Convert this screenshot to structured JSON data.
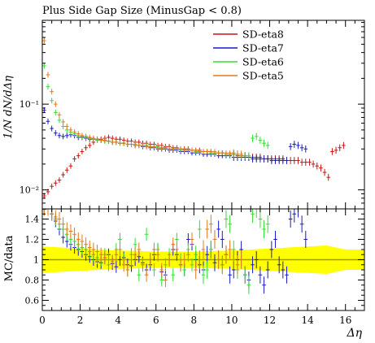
{
  "chart_data": [
    {
      "type": "scatter",
      "title": "Plus Side Gap Size (MinusGap < 0.8)",
      "ylabel": "1/N dN/dΔη",
      "xlim": [
        0,
        17
      ],
      "ylim": [
        0.006,
        0.95
      ],
      "yscale": "log",
      "ytick_labels": [
        "10⁻²",
        "10⁻¹"
      ],
      "ytick_values": [
        0.01,
        0.1
      ],
      "grid": false,
      "legend_position": "top-right",
      "series": [
        {
          "name": "SD-eta8",
          "color": "#cc1111",
          "x": [
            0.1,
            0.3,
            0.5,
            0.7,
            0.9,
            1.1,
            1.3,
            1.5,
            1.7,
            1.9,
            2.1,
            2.3,
            2.5,
            2.7,
            2.9,
            3.1,
            3.3,
            3.5,
            3.7,
            3.9,
            4.1,
            4.3,
            4.5,
            4.7,
            4.9,
            5.1,
            5.3,
            5.5,
            5.7,
            5.9,
            6.1,
            6.3,
            6.5,
            6.7,
            6.9,
            7.1,
            7.3,
            7.5,
            7.7,
            7.9,
            8.1,
            8.3,
            8.5,
            8.7,
            8.9,
            9.1,
            9.3,
            9.5,
            9.7,
            9.9,
            10.1,
            10.3,
            10.5,
            10.7,
            10.9,
            11.1,
            11.3,
            11.5,
            11.7,
            11.9,
            12.1,
            12.3,
            12.5,
            12.7,
            12.9,
            13.1,
            13.3,
            13.5,
            13.7,
            13.9,
            14.1,
            14.3,
            14.5,
            14.7,
            14.9,
            15.1,
            15.3,
            15.5,
            15.7,
            15.9
          ],
          "y": [
            0.0085,
            0.0095,
            0.011,
            0.012,
            0.013,
            0.015,
            0.017,
            0.019,
            0.023,
            0.025,
            0.028,
            0.031,
            0.033,
            0.036,
            0.038,
            0.039,
            0.04,
            0.041,
            0.04,
            0.039,
            0.039,
            0.038,
            0.037,
            0.037,
            0.036,
            0.036,
            0.035,
            0.035,
            0.034,
            0.034,
            0.033,
            0.033,
            0.032,
            0.032,
            0.031,
            0.031,
            0.03,
            0.03,
            0.03,
            0.029,
            0.029,
            0.029,
            0.028,
            0.028,
            0.028,
            0.027,
            0.027,
            0.027,
            0.026,
            0.026,
            0.026,
            0.025,
            0.025,
            0.025,
            0.024,
            0.024,
            0.024,
            0.024,
            0.023,
            0.023,
            0.023,
            0.023,
            0.023,
            0.023,
            0.022,
            0.022,
            0.022,
            0.022,
            0.021,
            0.021,
            0.021,
            0.02,
            0.019,
            0.018,
            0.016,
            0.014,
            0.028,
            0.029,
            0.031,
            0.033
          ],
          "ratio": null
        },
        {
          "name": "SD-eta7",
          "color": "#1a1acc",
          "x": [
            0.1,
            0.3,
            0.5,
            0.7,
            0.9,
            1.1,
            1.3,
            1.5,
            1.7,
            1.9,
            2.1,
            2.3,
            2.5,
            2.7,
            2.9,
            3.1,
            3.3,
            3.5,
            3.7,
            3.9,
            4.1,
            4.3,
            4.5,
            4.7,
            4.9,
            5.1,
            5.3,
            5.5,
            5.7,
            5.9,
            6.1,
            6.3,
            6.5,
            6.7,
            6.9,
            7.1,
            7.3,
            7.5,
            7.7,
            7.9,
            8.1,
            8.3,
            8.5,
            8.7,
            8.9,
            9.1,
            9.3,
            9.5,
            9.7,
            9.9,
            10.1,
            10.3,
            10.5,
            10.7,
            10.9,
            11.1,
            11.3,
            11.5,
            11.7,
            11.9,
            12.1,
            12.3,
            12.5,
            12.7,
            12.9,
            13.1,
            13.3,
            13.5,
            13.7,
            13.9
          ],
          "y": [
            0.085,
            0.063,
            0.052,
            0.046,
            0.043,
            0.042,
            0.043,
            0.044,
            0.043,
            0.041,
            0.041,
            0.04,
            0.039,
            0.039,
            0.039,
            0.038,
            0.038,
            0.037,
            0.036,
            0.036,
            0.035,
            0.035,
            0.034,
            0.034,
            0.033,
            0.033,
            0.032,
            0.032,
            0.031,
            0.031,
            0.03,
            0.03,
            0.03,
            0.029,
            0.029,
            0.029,
            0.028,
            0.028,
            0.028,
            0.027,
            0.027,
            0.027,
            0.026,
            0.026,
            0.026,
            0.026,
            0.025,
            0.025,
            0.025,
            0.025,
            0.024,
            0.024,
            0.024,
            0.024,
            0.024,
            0.023,
            0.023,
            0.023,
            0.023,
            0.023,
            0.022,
            0.022,
            0.022,
            0.022,
            0.022,
            0.032,
            0.034,
            0.033,
            0.031,
            0.03
          ],
          "ratio": [
            1.55,
            1.5,
            1.45,
            1.38,
            1.3,
            1.22,
            1.18,
            1.15,
            1.12,
            1.1,
            1.08,
            1.05,
            1.03,
            1.0,
            0.98,
            0.97,
            1.02,
            1.05,
            0.96,
            0.93,
            1.0,
            1.02,
            0.95,
            0.94,
            1.0,
            1.03,
            0.97,
            0.9,
            0.95,
            1.05,
            1.1,
            0.88,
            0.85,
            1.0,
            1.1,
            1.05,
            0.95,
            0.9,
            1.2,
            1.15,
            1.0,
            0.95,
            0.9,
            1.05,
            1.1,
            0.97,
            1.3,
            1.2,
            1.05,
            0.85,
            0.9,
            1.0,
            1.1,
            0.85,
            0.8,
            0.95,
            1.0,
            0.85,
            0.75,
            0.9,
            1.1,
            1.2,
            0.95,
            0.9,
            0.85,
            1.4,
            1.45,
            1.5,
            1.35,
            1.2
          ]
        },
        {
          "name": "SD-eta6",
          "color": "#33dd33",
          "x": [
            0.1,
            0.3,
            0.5,
            0.7,
            0.9,
            1.1,
            1.3,
            1.5,
            1.7,
            1.9,
            2.1,
            2.3,
            2.5,
            2.7,
            2.9,
            3.1,
            3.3,
            3.5,
            3.7,
            3.9,
            4.1,
            4.3,
            4.5,
            4.7,
            4.9,
            5.1,
            5.3,
            5.5,
            5.7,
            5.9,
            6.1,
            6.3,
            6.5,
            6.7,
            6.9,
            7.1,
            7.3,
            7.5,
            7.7,
            7.9,
            8.1,
            8.3,
            8.5,
            8.7,
            8.9,
            9.1,
            9.3,
            9.5,
            9.7,
            9.9,
            10.1,
            10.3,
            10.5,
            10.7,
            10.9,
            11.1,
            11.3,
            11.5,
            11.7,
            11.9
          ],
          "y": [
            0.28,
            0.16,
            0.11,
            0.08,
            0.065,
            0.055,
            0.05,
            0.047,
            0.045,
            0.043,
            0.042,
            0.041,
            0.04,
            0.039,
            0.038,
            0.038,
            0.037,
            0.037,
            0.036,
            0.036,
            0.035,
            0.035,
            0.034,
            0.034,
            0.034,
            0.033,
            0.033,
            0.033,
            0.032,
            0.032,
            0.032,
            0.031,
            0.031,
            0.03,
            0.03,
            0.03,
            0.029,
            0.029,
            0.029,
            0.029,
            0.028,
            0.028,
            0.028,
            0.028,
            0.027,
            0.027,
            0.027,
            0.027,
            0.026,
            0.026,
            0.026,
            0.026,
            0.025,
            0.025,
            0.025,
            0.04,
            0.042,
            0.038,
            0.035,
            0.033
          ],
          "ratio": [
            1.5,
            1.5,
            1.45,
            1.4,
            1.35,
            1.3,
            1.25,
            1.2,
            1.18,
            1.15,
            1.12,
            1.1,
            1.08,
            1.05,
            1.02,
            1.0,
            1.05,
            0.95,
            0.98,
            1.1,
            1.2,
            1.0,
            0.9,
            1.05,
            1.15,
            0.85,
            0.95,
            1.25,
            1.0,
            0.9,
            1.1,
            0.8,
            0.95,
            1.05,
            0.85,
            1.2,
            1.0,
            0.9,
            1.1,
            0.95,
            1.05,
            1.3,
            0.85,
            0.9,
            1.1,
            1.2,
            1.0,
            0.95,
            1.4,
            1.35,
            1.1,
            0.9,
            1.0,
            0.85,
            0.75,
            1.45,
            1.5,
            1.4,
            1.3,
            1.35
          ]
        },
        {
          "name": "SD-eta5",
          "color": "#e07a1f",
          "x": [
            0.1,
            0.3,
            0.5,
            0.7,
            0.9,
            1.1,
            1.3,
            1.5,
            1.7,
            1.9,
            2.1,
            2.3,
            2.5,
            2.7,
            2.9,
            3.1,
            3.3,
            3.5,
            3.7,
            3.9,
            4.1,
            4.3,
            4.5,
            4.7,
            4.9,
            5.1,
            5.3,
            5.5,
            5.7,
            5.9,
            6.1,
            6.3,
            6.5,
            6.7,
            6.9,
            7.1,
            7.3,
            7.5,
            7.7,
            7.9,
            8.1,
            8.3,
            8.5,
            8.7,
            8.9,
            9.1,
            9.3,
            9.5,
            9.7,
            9.9,
            10.1,
            10.3,
            10.5
          ],
          "y": [
            0.55,
            0.22,
            0.14,
            0.1,
            0.075,
            0.062,
            0.055,
            0.05,
            0.047,
            0.045,
            0.043,
            0.042,
            0.041,
            0.04,
            0.039,
            0.038,
            0.038,
            0.037,
            0.036,
            0.036,
            0.035,
            0.035,
            0.034,
            0.034,
            0.033,
            0.033,
            0.033,
            0.032,
            0.032,
            0.032,
            0.031,
            0.031,
            0.031,
            0.03,
            0.03,
            0.03,
            0.03,
            0.029,
            0.029,
            0.029,
            0.029,
            0.028,
            0.028,
            0.028,
            0.028,
            0.028,
            0.027,
            0.027,
            0.027,
            0.027,
            0.027,
            0.026,
            0.026
          ],
          "ratio": [
            1.5,
            1.5,
            1.45,
            1.42,
            1.4,
            1.35,
            1.3,
            1.28,
            1.25,
            1.2,
            1.18,
            1.15,
            1.12,
            1.1,
            1.08,
            1.05,
            1.02,
            1.0,
            0.98,
            1.05,
            1.1,
            0.95,
            0.9,
            1.0,
            1.05,
            1.1,
            0.95,
            0.85,
            1.0,
            1.1,
            1.05,
            0.9,
            0.8,
            1.0,
            1.15,
            1.1,
            0.95,
            1.0,
            1.05,
            1.2,
            0.9,
            1.0,
            1.1,
            1.3,
            1.35,
            1.2,
            1.0,
            0.95,
            1.05,
            1.1,
            1.0,
            0.95,
            1.0
          ]
        }
      ]
    },
    {
      "type": "scatter",
      "ylabel": "MC/data",
      "xlabel": "Δη",
      "xlim": [
        0,
        17
      ],
      "ylim": [
        0.5,
        1.5
      ],
      "xtick_labels": [
        "0",
        "2",
        "4",
        "6",
        "8",
        "10",
        "12",
        "14",
        "16"
      ],
      "xtick_values": [
        0,
        2,
        4,
        6,
        8,
        10,
        12,
        14,
        16
      ],
      "ytick_labels": [
        "0.6",
        "0.8",
        "1",
        "1.2",
        "1.4"
      ],
      "ytick_values": [
        0.6,
        0.8,
        1.0,
        1.2,
        1.4
      ],
      "reference_line": 1.0,
      "band_color": "#ffff00",
      "reference_color": "#9a9a00",
      "band_halfwidth_points": {
        "x": [
          0,
          1,
          2,
          4,
          6,
          8,
          10,
          12,
          14,
          15,
          16,
          17
        ],
        "halfwidth": [
          0.13,
          0.12,
          0.11,
          0.09,
          0.08,
          0.08,
          0.09,
          0.11,
          0.13,
          0.14,
          0.1,
          0.1
        ]
      }
    }
  ],
  "title_text": "Plus Side Gap Size (MinusGap < 0.8)",
  "upper_ylabel": "1/N dN/dΔη",
  "lower_ylabel": "MC/data",
  "xlabel_text": "Δη",
  "legend": {
    "items": [
      {
        "label": "SD-eta8",
        "color": "#cc1111"
      },
      {
        "label": "SD-eta7",
        "color": "#1a1acc"
      },
      {
        "label": "SD-eta6",
        "color": "#33dd33"
      },
      {
        "label": "SD-eta5",
        "color": "#e07a1f"
      }
    ]
  }
}
